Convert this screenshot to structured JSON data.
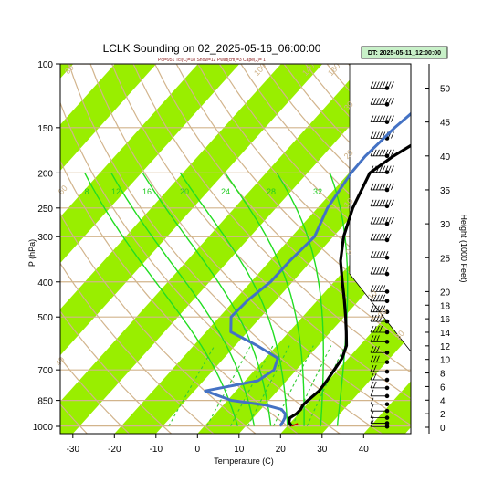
{
  "title": "LCLK Sounding on 02_2025-05-16_06:00:00",
  "subtitle": "Pcl=951 Tcl(C)=18 Show=12 Pwat(cm)=3 Cape(J)= 1",
  "dt_label": "DT: 2025-05-11_12:00:00",
  "colors": {
    "temperature": "#000000",
    "dewpoint": "#4472c4",
    "dry_adiabat": "#d2b48c",
    "moist_adiabat": "#22dd22",
    "mixing_ratio": "#33cc33",
    "isotherm_band": "#99ee00",
    "isobar": "#d2b48c",
    "parcel": "#cc0000"
  },
  "chart_data": {
    "type": "line",
    "xlabel": "Temperature (C)",
    "ylabel": "P (hPa)",
    "y2label": "Height (1000 Feet)",
    "x_ticks": [
      -30,
      -20,
      -10,
      0,
      10,
      20,
      30,
      40
    ],
    "y_ticks": [
      100,
      150,
      200,
      250,
      300,
      400,
      500,
      700,
      850,
      1000
    ],
    "y2_ticks": [
      0,
      2,
      4,
      6,
      8,
      10,
      12,
      14,
      16,
      18,
      20,
      25,
      30,
      35,
      40,
      45,
      50
    ],
    "y_scale": "log",
    "dry_adiabat_labels": [
      "80",
      "60",
      "40",
      "20",
      "0",
      "-20",
      "-30",
      "100",
      "140",
      "160",
      "30",
      "20",
      "10",
      "0",
      "10",
      "20",
      "30"
    ],
    "moist_adiabat_labels": [
      "8",
      "12",
      "16",
      "20",
      "24",
      "28",
      "32"
    ],
    "series": [
      {
        "key": "temperature",
        "points": [
          [
            1000,
            21.0
          ],
          [
            975,
            19.5
          ],
          [
            950,
            18.8
          ],
          [
            925,
            19.5
          ],
          [
            900,
            19.6
          ],
          [
            875,
            19.2
          ],
          [
            850,
            19.4
          ],
          [
            800,
            20.0
          ],
          [
            750,
            19.7
          ],
          [
            700,
            19.1
          ],
          [
            650,
            18.5
          ],
          [
            600,
            16.8
          ],
          [
            550,
            13.8
          ],
          [
            500,
            10.4
          ],
          [
            450,
            6.5
          ],
          [
            400,
            2.0
          ],
          [
            350,
            -3.0
          ],
          [
            300,
            -7.5
          ],
          [
            250,
            -11.5
          ],
          [
            200,
            -15.0
          ],
          [
            180,
            -13.0
          ],
          [
            150,
            -7.8
          ],
          [
            125,
            -2.0
          ],
          [
            100,
            8.3
          ]
        ]
      },
      {
        "key": "dewpoint",
        "points": [
          [
            1000,
            18.2
          ],
          [
            975,
            18.0
          ],
          [
            950,
            17.6
          ],
          [
            925,
            16.8
          ],
          [
            900,
            15.0
          ],
          [
            875,
            10.0
          ],
          [
            850,
            1.0
          ],
          [
            800,
            -7.4
          ],
          [
            750,
            3.1
          ],
          [
            700,
            4.6
          ],
          [
            650,
            3.0
          ],
          [
            600,
            -4.7
          ],
          [
            550,
            -14.0
          ],
          [
            500,
            -17.2
          ],
          [
            450,
            -16.8
          ],
          [
            400,
            -15.3
          ],
          [
            350,
            -15.2
          ],
          [
            300,
            -14.5
          ],
          [
            250,
            -17.6
          ],
          [
            200,
            -19.5
          ],
          [
            180,
            -19.7
          ],
          [
            150,
            -18.8
          ],
          [
            125,
            -17.0
          ],
          [
            100,
            -7.5
          ]
        ]
      },
      {
        "key": "parcel",
        "points": [
          [
            1000,
            21.0
          ],
          [
            985,
            22.0
          ]
        ]
      }
    ],
    "wind_barbs": [
      [
        50.0,
        8
      ],
      [
        47.6,
        8
      ],
      [
        45.0,
        8
      ],
      [
        42.6,
        8
      ],
      [
        40.0,
        8
      ],
      [
        37.6,
        8
      ],
      [
        35.0,
        8
      ],
      [
        32.6,
        8
      ],
      [
        30.0,
        8
      ],
      [
        27.6,
        7
      ],
      [
        25.0,
        6
      ],
      [
        22.6,
        6
      ],
      [
        20.0,
        5
      ],
      [
        18.6,
        5
      ],
      [
        17.0,
        5
      ],
      [
        15.6,
        4
      ],
      [
        14.0,
        4
      ],
      [
        12.6,
        3
      ],
      [
        11.0,
        3
      ],
      [
        9.6,
        3
      ],
      [
        8.2,
        2
      ],
      [
        7.0,
        2
      ],
      [
        5.8,
        2
      ],
      [
        4.6,
        1
      ],
      [
        3.4,
        1
      ],
      [
        2.4,
        1
      ],
      [
        1.4,
        1
      ],
      [
        0.6,
        1
      ],
      [
        0.1,
        1
      ]
    ]
  }
}
